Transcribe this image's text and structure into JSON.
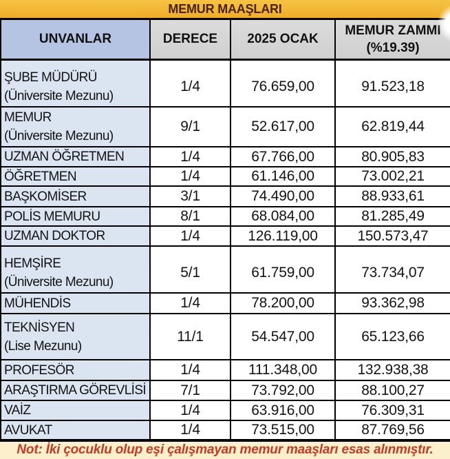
{
  "title": "MEMUR MAAŞLARI",
  "header": {
    "unvanlar": "UNVANLAR",
    "derece": "DERECE",
    "ocak": "2025 OCAK",
    "zam_line1": "MEMUR ZAMMI",
    "zam_line2": "(%19.39)"
  },
  "rows": [
    {
      "unvan": "ŞUBE MÜDÜRÜ",
      "sub": "(Üniversite Mezunu)",
      "derece": "1/4",
      "ocak": "76.659,00",
      "zam": "91.523,18"
    },
    {
      "unvan": "MEMUR",
      "sub": "(Üniversite Mezunu)",
      "derece": "9/1",
      "ocak": "52.617,00",
      "zam": "62.819,44"
    },
    {
      "unvan": "UZMAN ÖĞRETMEN",
      "derece": "1/4",
      "ocak": "67.766,00",
      "zam": "80.905,83"
    },
    {
      "unvan": "ÖĞRETMEN",
      "derece": "1/4",
      "ocak": "61.146,00",
      "zam": "73.002,21"
    },
    {
      "unvan": "BAŞKOMİSER",
      "derece": "3/1",
      "ocak": "74.490,00",
      "zam": "88.933,61"
    },
    {
      "unvan": "POLİS MEMURU",
      "derece": "8/1",
      "ocak": "68.084,00",
      "zam": "81.285,49"
    },
    {
      "unvan": "UZMAN DOKTOR",
      "derece": "1/4",
      "ocak": "126.119,00",
      "zam": "150.573,47"
    },
    {
      "unvan": "HEMŞİRE",
      "sub": "(Üniversite Mezunu)",
      "derece": "5/1",
      "ocak": "61.759,00",
      "zam": "73.734,07"
    },
    {
      "unvan": "MÜHENDİS",
      "derece": "1/4",
      "ocak": "78.200,00",
      "zam": "93.362,98"
    },
    {
      "unvan": "TEKNİSYEN",
      "sub": "(Lise Mezunu)",
      "derece": "11/1",
      "ocak": "54.547,00",
      "zam": "65.123,66"
    },
    {
      "unvan": "PROFESÖR",
      "derece": "1/4",
      "ocak": "111.348,00",
      "zam": "132.938,38"
    },
    {
      "unvan": "ARAŞTIRMA GÖREVLİSİ",
      "derece": "7/1",
      "ocak": "73.792,00",
      "zam": "88.100,27"
    },
    {
      "unvan": "VAİZ",
      "derece": "1/4",
      "ocak": "63.916,00",
      "zam": "76.309,31"
    },
    {
      "unvan": "AVUKAT",
      "derece": "1/4",
      "ocak": "73.515,00",
      "zam": "87.769,56"
    }
  ],
  "note": "Not: İki çocuklu olup eşi çalışmayan memur maaşları esas alınmıştır.",
  "colors": {
    "title_bg": "#f2b32f",
    "title_text": "#4a2206",
    "unvan_header_bg": "#b5c4e2",
    "gray_header_bg": "#d8d8d8",
    "unvan_cell_bg": "#dbe5f1",
    "note_bg": "#fbf0cb",
    "note_text": "#c63a22",
    "border": "#000000"
  }
}
